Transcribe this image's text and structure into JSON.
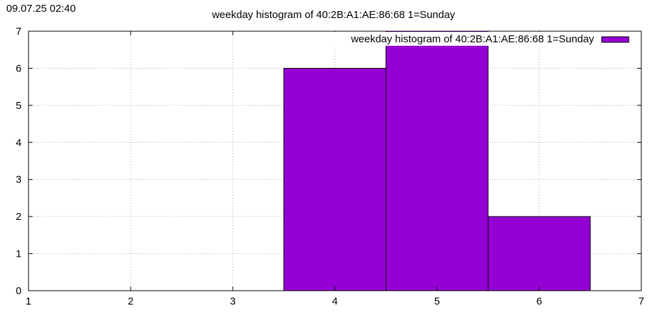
{
  "timestamp": "09.07.25 02:40",
  "chart_data": {
    "type": "bar",
    "title": "weekday histogram of 40:2B:A1:AE:86:68 1=Sunday",
    "xlabel": "",
    "ylabel": "",
    "xlim": [
      1,
      7
    ],
    "ylim": [
      0,
      7
    ],
    "x_ticks": [
      "1",
      "2",
      "3",
      "4",
      "5",
      "6",
      "7"
    ],
    "y_ticks": [
      "0",
      "1",
      "2",
      "3",
      "4",
      "5",
      "6",
      "7"
    ],
    "categories": [
      4,
      5,
      6
    ],
    "values": [
      6,
      7,
      2
    ],
    "bar_width": 1,
    "grid": true,
    "legend_position": "top-right",
    "series": [
      {
        "name": "weekday histogram of 40:2B:A1:AE:86:68 1=Sunday",
        "values": [
          6,
          7,
          2
        ],
        "color": "#9400d3"
      }
    ]
  }
}
